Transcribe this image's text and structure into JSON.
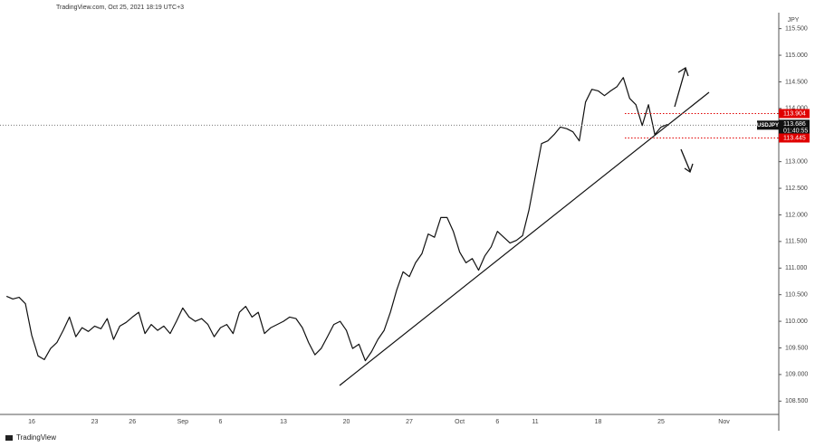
{
  "chart_data": {
    "type": "line",
    "header": "TradingView.com, Oct 25, 2021 18:19 UTC+3",
    "y_axis_label": "JPY",
    "brand": "TradingView",
    "categories": [
      null,
      null,
      null,
      null,
      "16",
      null,
      null,
      null,
      null,
      null,
      null,
      null,
      null,
      null,
      "23",
      null,
      null,
      null,
      null,
      null,
      "26",
      null,
      null,
      null,
      null,
      null,
      null,
      null,
      "Sep",
      null,
      null,
      null,
      null,
      null,
      "6",
      null,
      null,
      null,
      null,
      null,
      null,
      null,
      null,
      null,
      "13",
      null,
      null,
      null,
      null,
      null,
      null,
      null,
      null,
      null,
      "20",
      null,
      null,
      null,
      null,
      null,
      null,
      null,
      null,
      null,
      "27",
      null,
      null,
      null,
      null,
      null,
      null,
      null,
      "Oct",
      null,
      null,
      null,
      null,
      null,
      "6",
      null,
      null,
      null,
      null,
      null,
      "11",
      null,
      null,
      null,
      null,
      null,
      null,
      null,
      null,
      null,
      "18",
      null,
      null,
      null,
      null,
      null,
      null,
      null,
      null,
      null,
      "25",
      null,
      null,
      null,
      null,
      null,
      null,
      null,
      null,
      null,
      "Nov"
    ],
    "series": [
      {
        "name": "USDJPY",
        "color": "#111111",
        "values": [
          110.47,
          110.42,
          110.45,
          110.33,
          109.74,
          109.35,
          109.28,
          109.49,
          109.6,
          109.83,
          110.08,
          109.71,
          109.88,
          109.81,
          109.91,
          109.86,
          110.05,
          109.66,
          109.91,
          109.98,
          110.08,
          110.17,
          109.77,
          109.94,
          109.83,
          109.91,
          109.77,
          110.0,
          110.25,
          110.08,
          110.0,
          110.05,
          109.94,
          109.71,
          109.88,
          109.94,
          109.77,
          110.17,
          110.28,
          110.08,
          110.17,
          109.77,
          109.88,
          109.94,
          110.0,
          110.08,
          110.05,
          109.88,
          109.6,
          109.37,
          109.49,
          109.71,
          109.94,
          110.0,
          109.83,
          109.49,
          109.57,
          109.26,
          109.43,
          109.66,
          109.83,
          110.17,
          110.59,
          110.93,
          110.84,
          111.1,
          111.27,
          111.64,
          111.58,
          111.95,
          111.95,
          111.69,
          111.3,
          111.1,
          111.18,
          110.96,
          111.23,
          111.4,
          111.69,
          111.58,
          111.47,
          111.52,
          111.61,
          112.09,
          112.71,
          113.34,
          113.39,
          113.51,
          113.65,
          113.62,
          113.56,
          113.39,
          114.12,
          114.36,
          114.33,
          114.24,
          114.33,
          114.41,
          114.58,
          114.19,
          114.07,
          113.68,
          114.07,
          113.51,
          113.65,
          113.7,
          null,
          null,
          null,
          null,
          null,
          null,
          null,
          null,
          null
        ]
      }
    ],
    "ylim": [
      108.25,
      115.8
    ],
    "yticks": [
      {
        "value": 108.5,
        "label": "108.500"
      },
      {
        "value": 109,
        "label": "109.000"
      },
      {
        "value": 109.5,
        "label": "109.500"
      },
      {
        "value": 110,
        "label": "110.000"
      },
      {
        "value": 110.5,
        "label": "110.500"
      },
      {
        "value": 111,
        "label": "111.000"
      },
      {
        "value": 111.5,
        "label": "111.500"
      },
      {
        "value": 112,
        "label": "112.000"
      },
      {
        "value": 112.5,
        "label": "112.500"
      },
      {
        "value": 113,
        "label": "113.000"
      },
      {
        "value": 113.5,
        "label": "113.500"
      },
      {
        "value": 114,
        "label": "114.000"
      },
      {
        "value": 114.5,
        "label": "114.500"
      },
      {
        "value": 115,
        "label": "115.000"
      },
      {
        "value": 115.5,
        "label": "115.500"
      }
    ],
    "grid": false,
    "levels": [
      {
        "value": 113.904,
        "color": "#e00000"
      },
      {
        "value": 113.445,
        "color": "#e00000"
      }
    ],
    "last_price": 113.686,
    "countdown": "01:40:55"
  }
}
